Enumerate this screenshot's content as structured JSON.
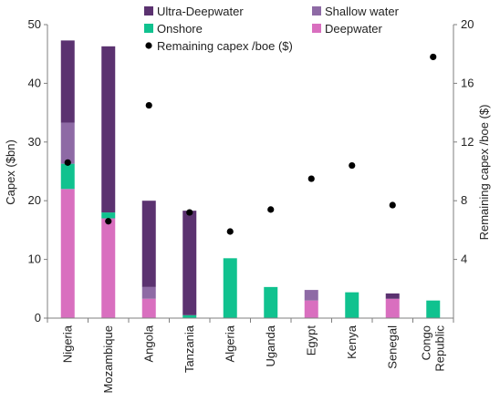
{
  "chart_data": {
    "type": "bar",
    "stacked": true,
    "categories": [
      [
        "Nigeria"
      ],
      [
        "Mozambique"
      ],
      [
        "Angola"
      ],
      [
        "Tanzania"
      ],
      [
        "Algeria"
      ],
      [
        "Uganda"
      ],
      [
        "Egypt"
      ],
      [
        "Kenya"
      ],
      [
        "Senegal"
      ],
      [
        "Congo",
        "Republic"
      ]
    ],
    "series": [
      {
        "name": "Deepwater",
        "color": "#d96fbf",
        "values": [
          22,
          17,
          3.3,
          0,
          0,
          0,
          3,
          0,
          3.3,
          0
        ]
      },
      {
        "name": "Onshore",
        "color": "#10c28f",
        "values": [
          4.3,
          1,
          0,
          0.5,
          10.2,
          5.3,
          0,
          4.4,
          0,
          3
        ]
      },
      {
        "name": "Shallow water",
        "color": "#8e6aa5",
        "values": [
          7,
          0,
          2,
          0,
          0,
          0,
          1.8,
          0,
          0,
          0
        ]
      },
      {
        "name": "Ultra-Deepwater",
        "color": "#5b3270",
        "values": [
          14,
          28.3,
          14.7,
          17.8,
          0,
          0,
          0,
          0,
          0.9,
          0
        ]
      }
    ],
    "secondary_series": {
      "name": "Remaining capex /boe ($)",
      "type": "scatter",
      "color": "#000000",
      "values": [
        10.6,
        6.6,
        14.5,
        7.2,
        5.9,
        7.4,
        9.5,
        10.4,
        7.7,
        17.8
      ]
    },
    "ylabel": "Capex ($bn)",
    "y2label": "Remaining capex /boe ($)",
    "ylim": [
      0,
      50
    ],
    "y2lim": [
      0,
      20
    ],
    "yticks": [
      "0",
      "10",
      "20",
      "30",
      "40",
      "50"
    ],
    "y2ticks": [
      "4",
      "8",
      "12",
      "16",
      "20"
    ],
    "grid": false,
    "legend_position": "top",
    "legend": [
      {
        "label": "Ultra-Deepwater",
        "color": "#5b3270",
        "marker": "square"
      },
      {
        "label": "Shallow water",
        "color": "#8e6aa5",
        "marker": "square"
      },
      {
        "label": "Onshore",
        "color": "#10c28f",
        "marker": "square"
      },
      {
        "label": "Deepwater",
        "color": "#d96fbf",
        "marker": "square"
      },
      {
        "label": "Remaining capex /boe ($)",
        "color": "#000000",
        "marker": "dot"
      }
    ]
  }
}
